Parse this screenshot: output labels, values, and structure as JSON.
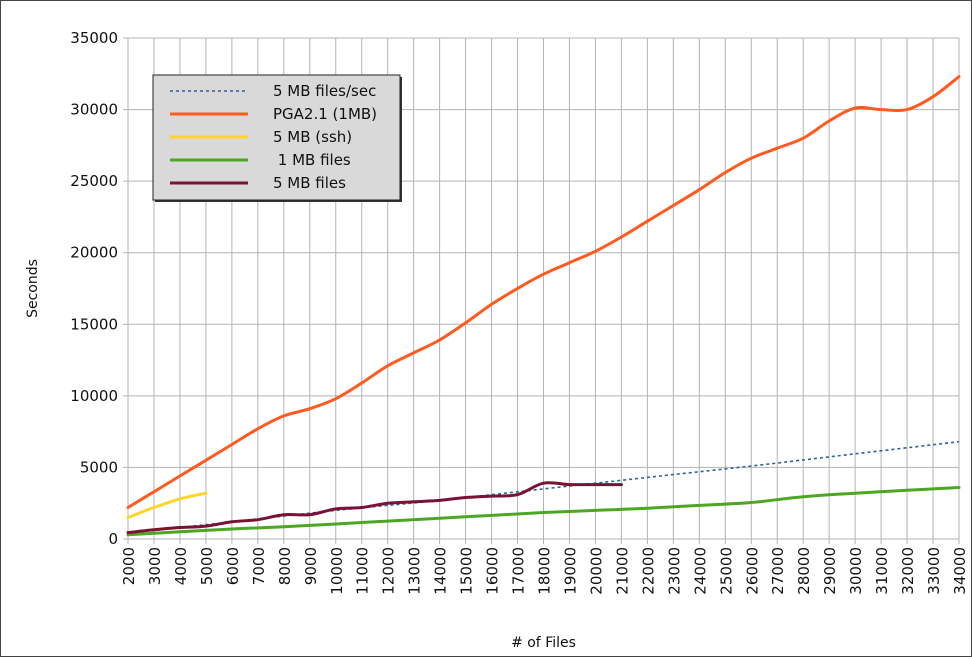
{
  "chart_data": {
    "type": "line",
    "xlabel": "# of Files",
    "ylabel": "Seconds",
    "xlim": [
      2000,
      34000
    ],
    "ylim": [
      0,
      35000
    ],
    "y_ticks": [
      0,
      5000,
      10000,
      15000,
      20000,
      25000,
      30000,
      35000
    ],
    "x_ticks": [
      2000,
      3000,
      4000,
      5000,
      6000,
      7000,
      8000,
      9000,
      10000,
      11000,
      12000,
      13000,
      14000,
      15000,
      16000,
      17000,
      18000,
      19000,
      20000,
      21000,
      22000,
      23000,
      24000,
      25000,
      26000,
      27000,
      28000,
      29000,
      30000,
      31000,
      32000,
      33000,
      34000
    ],
    "grid": true,
    "legend_position": "top-left",
    "series": [
      {
        "name": "5 MB files/sec",
        "color": "#2f5f9f",
        "style": "dotted",
        "points": [
          [
            2000,
            400
          ],
          [
            6000,
            1200
          ],
          [
            10000,
            2000
          ],
          [
            14000,
            2700
          ],
          [
            18000,
            3500
          ],
          [
            22000,
            4300
          ],
          [
            26000,
            5100
          ],
          [
            30000,
            5950
          ],
          [
            34000,
            6800
          ]
        ]
      },
      {
        "name": "PGA2.1 (1MB)",
        "color": "#ff5a1f",
        "style": "solid",
        "points": [
          [
            2000,
            2200
          ],
          [
            3000,
            3300
          ],
          [
            4000,
            4400
          ],
          [
            5000,
            5500
          ],
          [
            6000,
            6600
          ],
          [
            7000,
            7700
          ],
          [
            8000,
            8600
          ],
          [
            9000,
            9100
          ],
          [
            10000,
            9800
          ],
          [
            11000,
            10900
          ],
          [
            12000,
            12100
          ],
          [
            13000,
            13000
          ],
          [
            14000,
            13900
          ],
          [
            15000,
            15100
          ],
          [
            16000,
            16400
          ],
          [
            17000,
            17500
          ],
          [
            18000,
            18500
          ],
          [
            19000,
            19300
          ],
          [
            20000,
            20100
          ],
          [
            21000,
            21100
          ],
          [
            22000,
            22200
          ],
          [
            23000,
            23300
          ],
          [
            24000,
            24400
          ],
          [
            25000,
            25600
          ],
          [
            26000,
            26600
          ],
          [
            27000,
            27300
          ],
          [
            28000,
            28000
          ],
          [
            29000,
            29200
          ],
          [
            30000,
            30100
          ],
          [
            31000,
            30000
          ],
          [
            32000,
            30000
          ],
          [
            33000,
            30900
          ],
          [
            34000,
            32300
          ]
        ]
      },
      {
        "name": "5 MB (ssh)",
        "color": "#ffd42a",
        "style": "solid",
        "points": [
          [
            2000,
            1500
          ],
          [
            3000,
            2200
          ],
          [
            4000,
            2800
          ],
          [
            5000,
            3200
          ]
        ]
      },
      {
        "name": " 1 MB files",
        "color": "#4da624",
        "style": "solid",
        "points": [
          [
            2000,
            300
          ],
          [
            4000,
            500
          ],
          [
            6000,
            700
          ],
          [
            8000,
            850
          ],
          [
            10000,
            1050
          ],
          [
            12000,
            1250
          ],
          [
            14000,
            1450
          ],
          [
            16000,
            1650
          ],
          [
            18000,
            1850
          ],
          [
            20000,
            2000
          ],
          [
            22000,
            2150
          ],
          [
            24000,
            2350
          ],
          [
            26000,
            2550
          ],
          [
            28000,
            2950
          ],
          [
            30000,
            3200
          ],
          [
            32000,
            3400
          ],
          [
            34000,
            3600
          ]
        ]
      },
      {
        "name": "5 MB files",
        "color": "#7a1233",
        "style": "solid",
        "points": [
          [
            2000,
            450
          ],
          [
            3000,
            650
          ],
          [
            4000,
            800
          ],
          [
            5000,
            900
          ],
          [
            6000,
            1200
          ],
          [
            7000,
            1350
          ],
          [
            8000,
            1700
          ],
          [
            9000,
            1700
          ],
          [
            10000,
            2100
          ],
          [
            11000,
            2200
          ],
          [
            12000,
            2500
          ],
          [
            13000,
            2600
          ],
          [
            14000,
            2700
          ],
          [
            15000,
            2900
          ],
          [
            16000,
            3000
          ],
          [
            17000,
            3100
          ],
          [
            18000,
            3900
          ],
          [
            19000,
            3800
          ],
          [
            20000,
            3800
          ],
          [
            21000,
            3800
          ]
        ]
      }
    ]
  }
}
